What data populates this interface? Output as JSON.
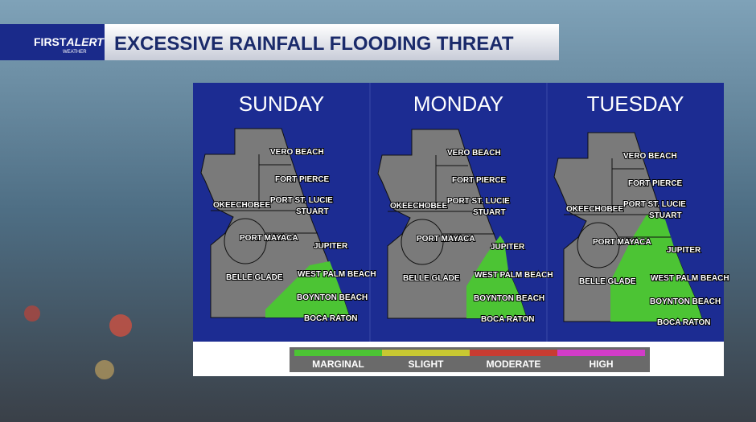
{
  "header": {
    "logo_first": "FIRST",
    "logo_alert": "ALERT",
    "logo_sub": "WEATHER",
    "title": "EXCESSIVE RAINFALL FLOODING THREAT"
  },
  "panels": [
    {
      "day": "SUNDAY",
      "cities": [
        "VERO BEACH",
        "FORT PIERCE",
        "OKEECHOBEE",
        "PORT ST. LUCIE",
        "STUART",
        "PORT MAYACA",
        "JUPITER",
        "BELLE GLADE",
        "WEST PALM BEACH",
        "BOYNTON BEACH",
        "BOCA RATON"
      ]
    },
    {
      "day": "MONDAY",
      "cities": [
        "VERO BEACH",
        "FORT PIERCE",
        "OKEECHOBEE",
        "PORT ST. LUCIE",
        "STUART",
        "PORT MAYACA",
        "JUPITER",
        "BELLE GLADE",
        "WEST PALM BEACH",
        "BOYNTON BEACH",
        "BOCA RATON"
      ]
    },
    {
      "day": "TUESDAY",
      "cities": [
        "VERO BEACH",
        "FORT PIERCE",
        "OKEECHOBEE",
        "PORT ST. LUCIE",
        "STUART",
        "PORT MAYACA",
        "JUPITER",
        "BELLE GLADE",
        "WEST PALM BEACH",
        "BOYNTON BEACH",
        "BOCA RATON"
      ]
    }
  ],
  "legend": [
    {
      "label": "MARGINAL",
      "color": "#4cc434"
    },
    {
      "label": "SLIGHT",
      "color": "#c8c832"
    },
    {
      "label": "MODERATE",
      "color": "#c83c32"
    },
    {
      "label": "HIGH",
      "color": "#d23cc8"
    }
  ]
}
